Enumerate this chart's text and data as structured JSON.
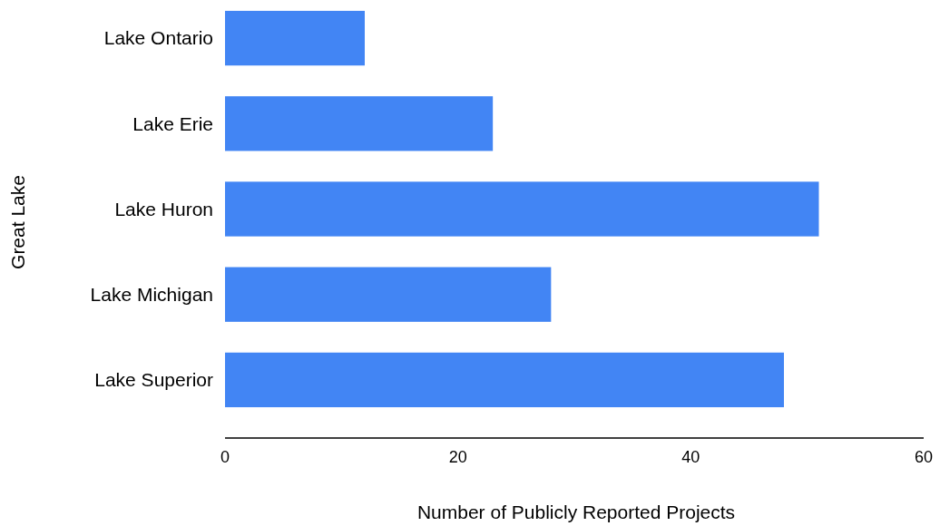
{
  "chart_data": {
    "type": "bar",
    "orientation": "horizontal",
    "xlabel": "Number of Publicly Reported Projects",
    "ylabel": "Great Lake",
    "categories": [
      "Lake Ontario",
      "Lake Erie",
      "Lake Huron",
      "Lake Michigan",
      "Lake Superior"
    ],
    "values": [
      12,
      23,
      51,
      28,
      48
    ],
    "color": "#4285f4",
    "xlim": [
      0,
      60
    ],
    "xticks": [
      0,
      20,
      40,
      60
    ],
    "grid": false
  }
}
